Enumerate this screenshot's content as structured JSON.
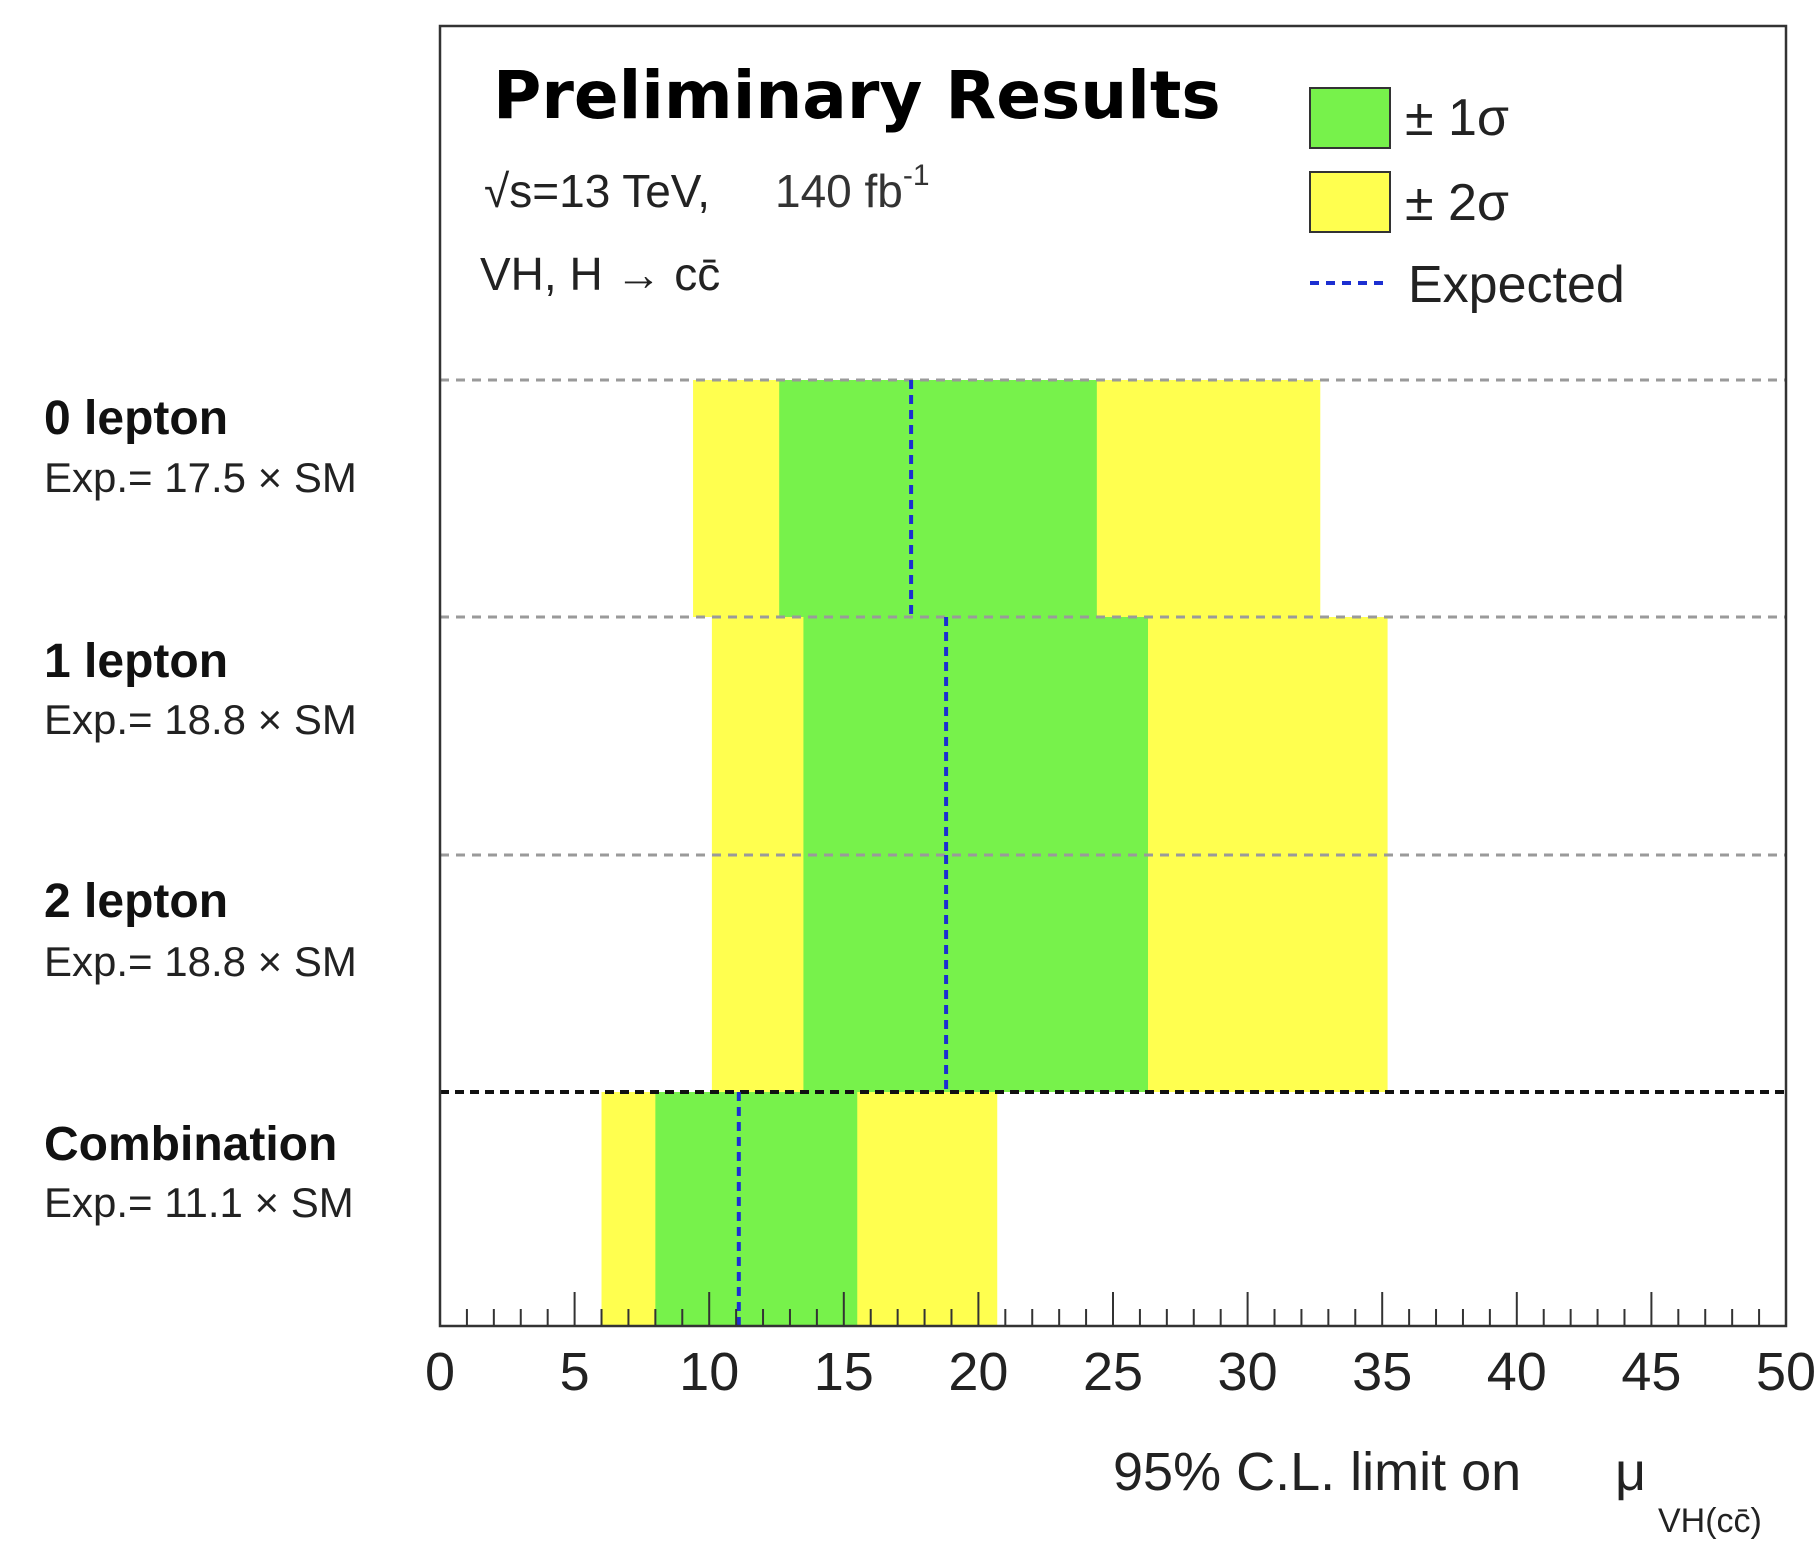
{
  "chart_data": {
    "type": "bar",
    "title": "Preliminary Results",
    "subtitle_energy": "√s=13 TeV,",
    "subtitle_sqrt": "√",
    "subtitle_energy_rest": "s=13 TeV,",
    "subtitle_lumi": "140 fb",
    "subtitle_lumi_exp": "-1",
    "subtitle_process": "VH, H → cc̄",
    "xlabel": "95% C.L. limit on",
    "xlabel_symbol": "μ",
    "xlabel_sub": "VH(cc̄)",
    "xlim": [
      0,
      50
    ],
    "x_ticks": [
      "0",
      "5",
      "10",
      "15",
      "20",
      "25",
      "30",
      "35",
      "40",
      "45",
      "50"
    ],
    "grid": "horizontal dashed separators between categories",
    "legend": {
      "placement": "top-right",
      "entries": [
        {
          "label": "± 1σ",
          "color": "#77f24b"
        },
        {
          "label": "± 2σ",
          "color": "#ffff4f"
        },
        {
          "label": "Expected",
          "color": "#1c2fd1"
        }
      ]
    },
    "categories": [
      {
        "name": "0 lepton",
        "expected_text": "Exp.= 17.5 × SM",
        "expected": 17.5,
        "minus2": 9.4,
        "minus1": 12.6,
        "plus1": 24.4,
        "plus2": 32.7
      },
      {
        "name": "1 lepton",
        "expected_text": "Exp.= 18.8 × SM",
        "expected": 18.8,
        "minus2": 10.1,
        "minus1": 13.5,
        "plus1": 26.3,
        "plus2": 35.2
      },
      {
        "name": "2 lepton",
        "expected_text": "Exp.= 18.8 × SM",
        "expected": 18.8,
        "minus2": 10.1,
        "minus1": 13.5,
        "plus1": 26.3,
        "plus2": 35.2
      },
      {
        "name": "Combination",
        "expected_text": "Exp.= 11.1 × SM",
        "expected": 11.1,
        "minus2": 6.0,
        "minus1": 8.0,
        "plus1": 15.5,
        "plus2": 20.7
      }
    ],
    "colors": {
      "band1": "#77f24b",
      "band2": "#ffff4f",
      "expected_line": "#1c2fd1",
      "frame": "#333333"
    }
  }
}
